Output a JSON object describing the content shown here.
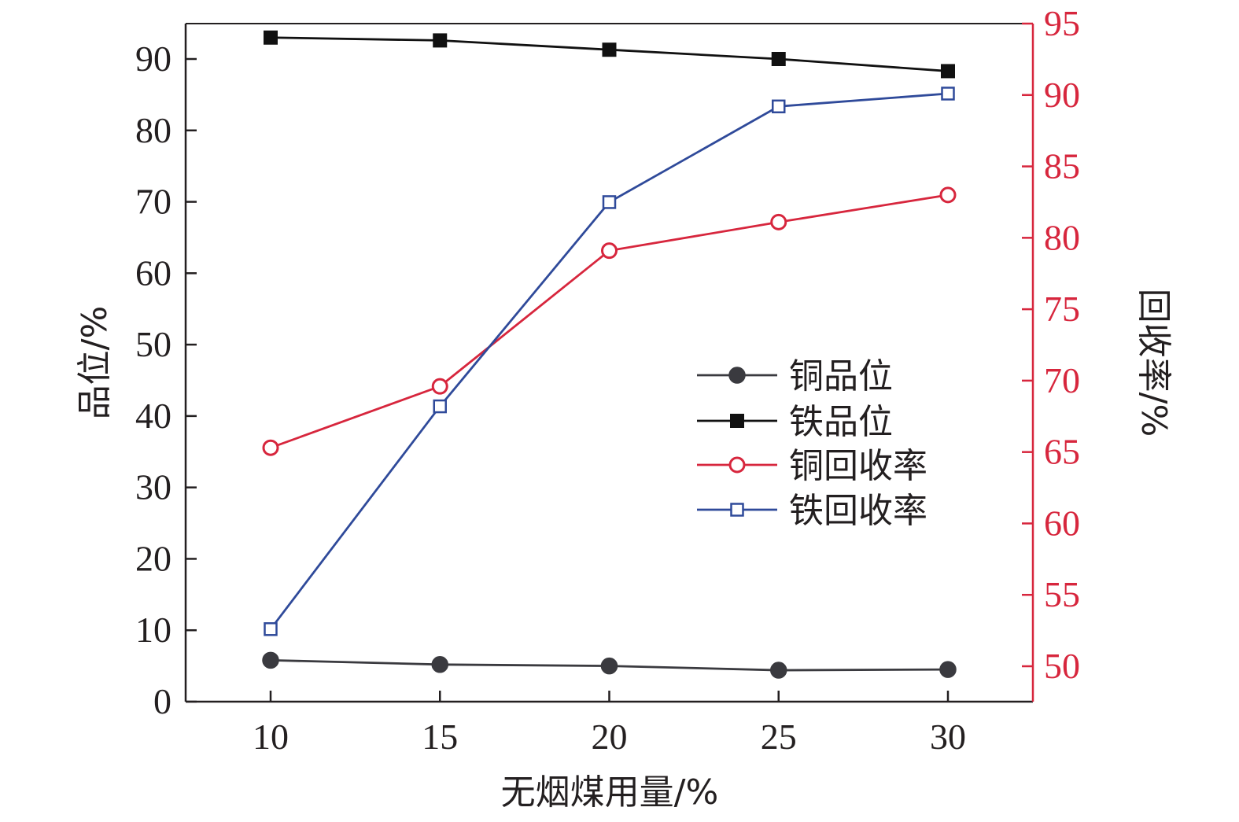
{
  "colors": {
    "left_axis": "#231f20",
    "right_axis": "#d7263d",
    "cu_grade": "#3a3a3f",
    "fe_grade": "#111111",
    "cu_recovery": "#d7263d",
    "fe_recovery": "#2f4a9a"
  },
  "chart_data": {
    "type": "line",
    "xlabel": "无烟煤用量/%",
    "ylabel": "品位/%",
    "y2label": "回收率/%",
    "x": [
      10,
      15,
      20,
      25,
      30
    ],
    "xlim": [
      7.5,
      32.5
    ],
    "ylim": [
      0,
      96
    ],
    "y2lim": [
      47.5,
      95
    ],
    "x_ticks": [
      10,
      15,
      20,
      25,
      30
    ],
    "y_ticks": [
      0,
      10,
      20,
      30,
      40,
      50,
      60,
      70,
      80,
      90
    ],
    "y2_ticks": [
      50,
      55,
      60,
      65,
      70,
      75,
      80,
      85,
      90,
      95
    ],
    "legend_position": "center-right",
    "grid": false,
    "series": [
      {
        "name": "铜品位",
        "axis": "left",
        "marker": "circle-filled",
        "color": "#3a3a3f",
        "values": [
          5.8,
          5.2,
          5.0,
          4.4,
          4.5
        ]
      },
      {
        "name": "铁品位",
        "axis": "left",
        "marker": "square-filled",
        "color": "#111111",
        "values": [
          93.0,
          92.6,
          91.3,
          90.0,
          88.3
        ]
      },
      {
        "name": "铜回收率",
        "axis": "right",
        "marker": "circle-open",
        "color": "#d7263d",
        "values": [
          65.3,
          69.6,
          79.1,
          81.1,
          83.0
        ]
      },
      {
        "name": "铁回收率",
        "axis": "right",
        "marker": "square-open",
        "color": "#2f4a9a",
        "values": [
          52.6,
          68.2,
          82.5,
          89.2,
          90.1
        ]
      }
    ]
  }
}
